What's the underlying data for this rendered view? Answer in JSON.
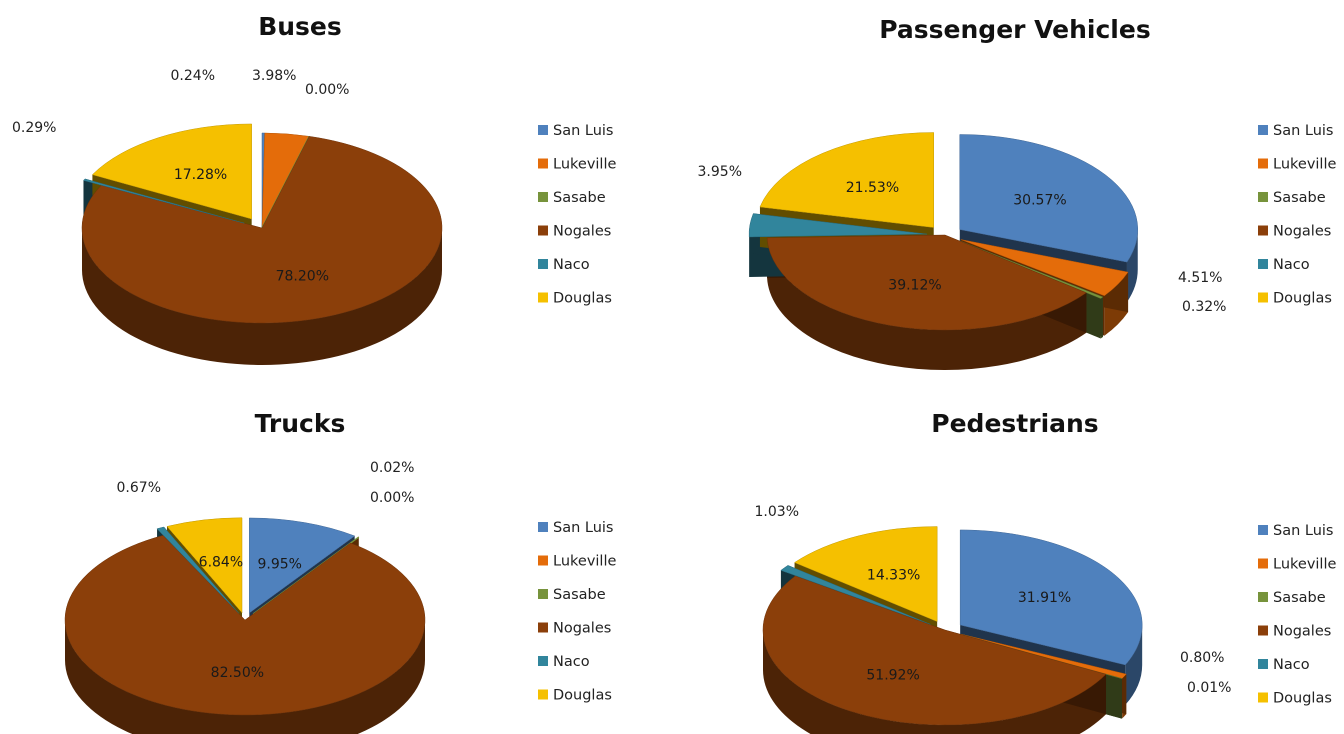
{
  "chart_data": [
    {
      "type": "pie",
      "title": "Buses",
      "categories": [
        "San Luis",
        "Lukeville",
        "Sasabe",
        "Nogales",
        "Naco",
        "Douglas"
      ],
      "values": [
        0.24,
        3.98,
        0.0,
        78.2,
        0.29,
        17.28
      ],
      "labels": [
        "0.24%",
        "3.98%",
        "0.00%",
        "78.20%",
        "0.29%",
        "17.28%"
      ],
      "legend": "right"
    },
    {
      "type": "pie",
      "title": "Passenger Vehicles",
      "categories": [
        "San Luis",
        "Lukeville",
        "Sasabe",
        "Nogales",
        "Naco",
        "Douglas"
      ],
      "values": [
        30.57,
        4.51,
        0.32,
        39.12,
        3.95,
        21.53
      ],
      "labels": [
        "30.57%",
        "4.51%",
        "0.32%",
        "39.12%",
        "3.95%",
        "21.53%"
      ],
      "legend": "right"
    },
    {
      "type": "pie",
      "title": "Trucks",
      "categories": [
        "San Luis",
        "Lukeville",
        "Sasabe",
        "Nogales",
        "Naco",
        "Douglas"
      ],
      "values": [
        9.95,
        0.02,
        0.0,
        82.5,
        0.67,
        6.84
      ],
      "labels": [
        "9.95%",
        "0.02%",
        "0.00%",
        "82.50%",
        "0.67%",
        "6.84%"
      ],
      "legend": "right"
    },
    {
      "type": "pie",
      "title": "Pedestrians",
      "categories": [
        "San Luis",
        "Lukeville",
        "Sasabe",
        "Nogales",
        "Naco",
        "Douglas"
      ],
      "values": [
        31.91,
        0.8,
        0.01,
        51.92,
        1.03,
        14.33
      ],
      "labels": [
        "31.91%",
        "0.80%",
        "0.01%",
        "51.92%",
        "1.03%",
        "14.33%"
      ],
      "legend": "right"
    }
  ],
  "colors": {
    "San Luis": "#4F81BD",
    "Lukeville": "#E46C0A",
    "Sasabe": "#77933C",
    "Nogales": "#8B3F0A",
    "Naco": "#31859C",
    "Douglas": "#F5C000"
  }
}
